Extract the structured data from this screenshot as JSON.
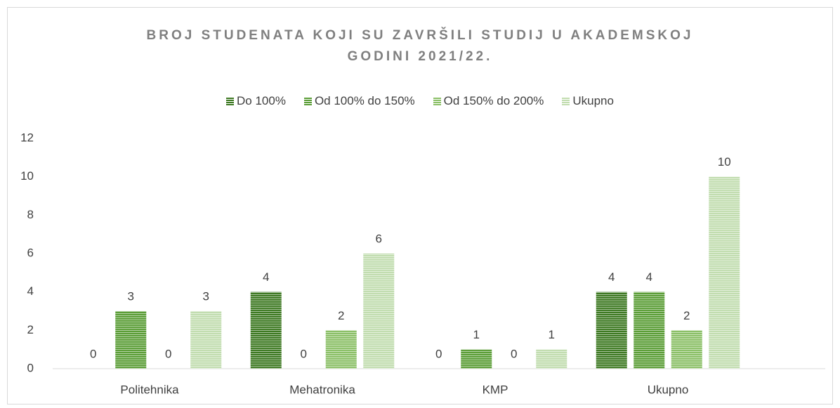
{
  "chart_data": {
    "type": "bar",
    "title": "BROJ STUDENATA KOJI SU ZAVRŠILI STUDIJ U AKADEMSKOJ GODINI 2021/22.",
    "categories": [
      "Politehnika",
      "Mehatronika",
      "KMP",
      "Ukupno"
    ],
    "series": [
      {
        "name": "Do 100%",
        "color": "#3f7a24",
        "values": [
          0,
          4,
          0,
          4
        ]
      },
      {
        "name": "Od 100% do 150%",
        "color": "#5c9e38",
        "values": [
          3,
          0,
          1,
          4
        ]
      },
      {
        "name": "Od 150% do 200%",
        "color": "#8cc068",
        "values": [
          0,
          2,
          0,
          2
        ]
      },
      {
        "name": "Ukupno",
        "color": "#c2ddb0",
        "values": [
          3,
          6,
          1,
          10
        ]
      }
    ],
    "ylim": [
      0,
      12
    ],
    "yticks": [
      0,
      2,
      4,
      6,
      8,
      10,
      12
    ],
    "legend": "top",
    "grid": false
  }
}
